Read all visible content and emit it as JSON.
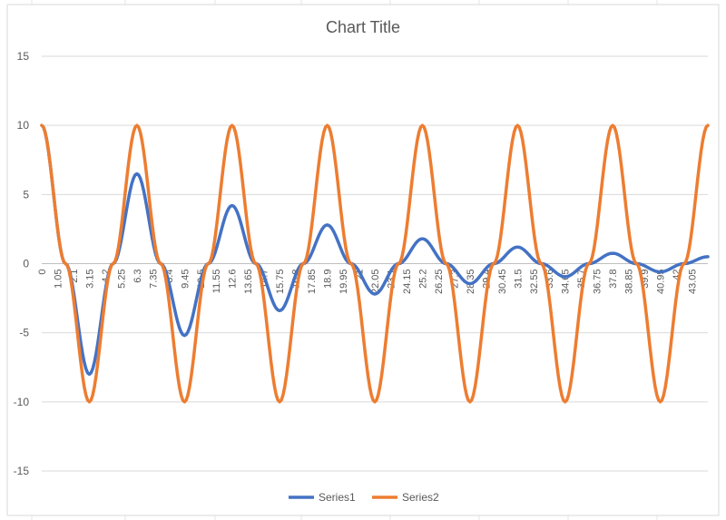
{
  "chart_data": {
    "type": "line",
    "title": "Chart Title",
    "xlabel": "",
    "ylabel": "",
    "ylim": [
      -15,
      15
    ],
    "yticks": [
      -15,
      -10,
      -5,
      0,
      5,
      10,
      15
    ],
    "x_labels": [
      "0",
      "1.05",
      "2.1",
      "3.15",
      "4.2",
      "5.25",
      "6.3",
      "7.35",
      "8.4",
      "9.45",
      "10.5",
      "11.55",
      "12.6",
      "13.65",
      "14.7",
      "15.75",
      "16.8",
      "17.85",
      "18.9",
      "19.95",
      "21",
      "22.05",
      "23.1",
      "24.15",
      "25.2",
      "26.25",
      "27.3",
      "28.35",
      "29.4",
      "30.45",
      "31.5",
      "32.55",
      "33.6",
      "34.65",
      "35.7",
      "36.75",
      "37.8",
      "38.85",
      "39.9",
      "40.95",
      "42",
      "43.05"
    ],
    "x_step": 0.15,
    "x_max": 44.1,
    "grid": true,
    "legend_position": "bottom",
    "series": [
      {
        "name": "Series1",
        "color": "#4472C4",
        "points": [
          [
            0,
            10
          ],
          [
            1.575,
            0
          ],
          [
            3.15,
            -8
          ],
          [
            4.725,
            0
          ],
          [
            6.3,
            6.5
          ],
          [
            7.875,
            0
          ],
          [
            9.45,
            -5.2
          ],
          [
            11.025,
            0
          ],
          [
            12.6,
            4.2
          ],
          [
            14.175,
            0
          ],
          [
            15.75,
            -3.4
          ],
          [
            17.325,
            0
          ],
          [
            18.9,
            2.8
          ],
          [
            20.475,
            0
          ],
          [
            22.05,
            -2.2
          ],
          [
            23.625,
            0
          ],
          [
            25.2,
            1.8
          ],
          [
            26.775,
            0
          ],
          [
            28.35,
            -1.45
          ],
          [
            29.925,
            0
          ],
          [
            31.5,
            1.2
          ],
          [
            33.075,
            0
          ],
          [
            34.65,
            -0.95
          ],
          [
            36.225,
            0
          ],
          [
            37.8,
            0.75
          ],
          [
            39.375,
            0
          ],
          [
            40.95,
            -0.6
          ],
          [
            42.525,
            0
          ],
          [
            44.1,
            0.5
          ]
        ]
      },
      {
        "name": "Series2",
        "color": "#ED7D31",
        "points": [
          [
            0,
            10
          ],
          [
            1.575,
            0
          ],
          [
            3.15,
            -10
          ],
          [
            4.725,
            0
          ],
          [
            6.3,
            10
          ],
          [
            7.875,
            0
          ],
          [
            9.45,
            -10
          ],
          [
            11.025,
            0
          ],
          [
            12.6,
            10
          ],
          [
            14.175,
            0
          ],
          [
            15.75,
            -10
          ],
          [
            17.325,
            0
          ],
          [
            18.9,
            10
          ],
          [
            20.475,
            0
          ],
          [
            22.05,
            -10
          ],
          [
            23.625,
            0
          ],
          [
            25.2,
            10
          ],
          [
            26.775,
            0
          ],
          [
            28.35,
            -10
          ],
          [
            29.925,
            0
          ],
          [
            31.5,
            10
          ],
          [
            33.075,
            0
          ],
          [
            34.65,
            -10
          ],
          [
            36.225,
            0
          ],
          [
            37.8,
            10
          ],
          [
            39.375,
            0
          ],
          [
            40.95,
            -10
          ],
          [
            42.525,
            0
          ],
          [
            44.1,
            10
          ]
        ]
      }
    ]
  }
}
